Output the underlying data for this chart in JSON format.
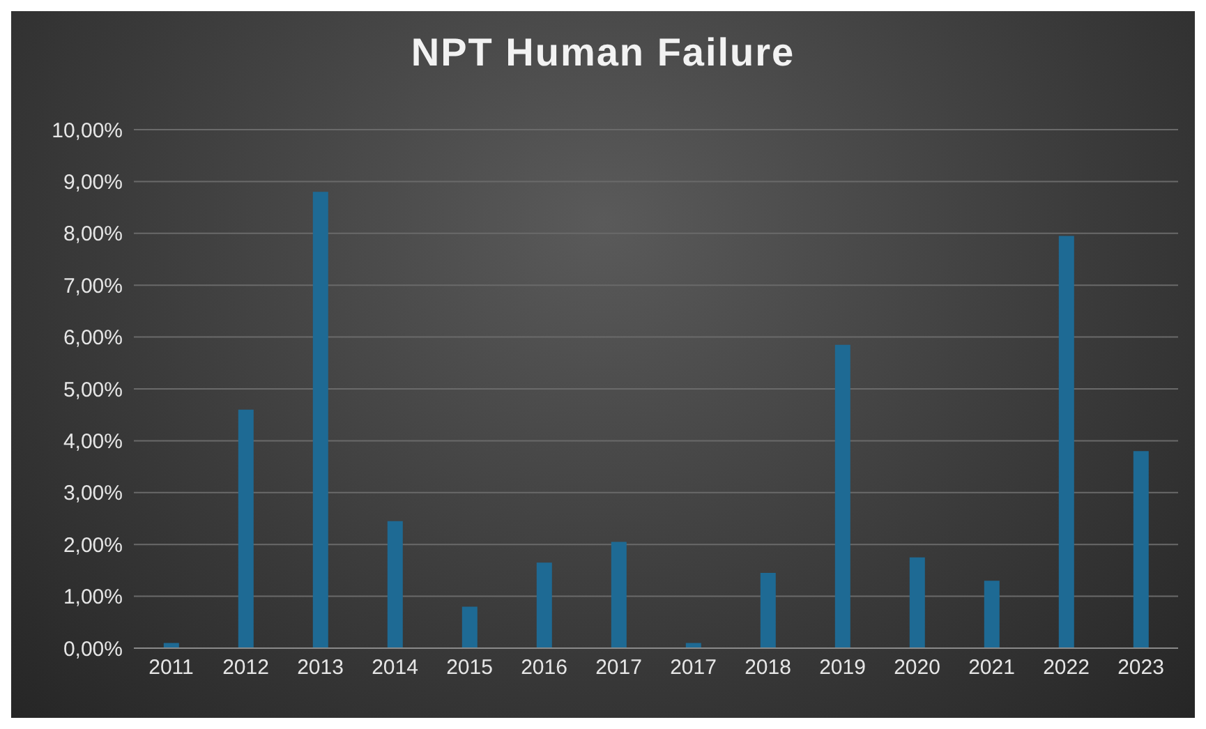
{
  "chart_data": {
    "type": "bar",
    "title": "NPT Human Failure",
    "categories": [
      "2011",
      "2012",
      "2013",
      "2014",
      "2015",
      "2016",
      "2017",
      "2017",
      "2018",
      "2019",
      "2020",
      "2021",
      "2022",
      "2023"
    ],
    "values": [
      0.1,
      4.6,
      8.8,
      2.45,
      0.8,
      1.65,
      2.05,
      0.1,
      1.45,
      5.85,
      1.75,
      1.3,
      7.95,
      3.8
    ],
    "color": "#1e6a94",
    "ylim": [
      0,
      10
    ],
    "yticks": [
      {
        "value": 0,
        "label": "0,00%"
      },
      {
        "value": 1,
        "label": "1,00%"
      },
      {
        "value": 2,
        "label": "2,00%"
      },
      {
        "value": 3,
        "label": "3,00%"
      },
      {
        "value": 4,
        "label": "4,00%"
      },
      {
        "value": 5,
        "label": "5,00%"
      },
      {
        "value": 6,
        "label": "6,00%"
      },
      {
        "value": 7,
        "label": "7,00%"
      },
      {
        "value": 8,
        "label": "8,00%"
      },
      {
        "value": 9,
        "label": "9,00%"
      },
      {
        "value": 10,
        "label": "10,00%"
      }
    ],
    "grid": "y"
  }
}
